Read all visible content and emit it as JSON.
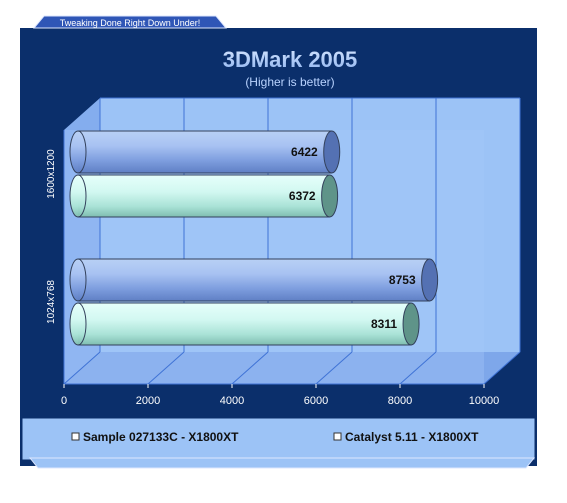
{
  "banner": {
    "tagline": "Tweaking Done Right Down Under!"
  },
  "chart_data": {
    "type": "bar",
    "orientation": "horizontal",
    "title": "3DMark 2005",
    "subtitle": "(Higher is better)",
    "categories": [
      "1600x1200",
      "1024x768"
    ],
    "series": [
      {
        "name": "Sample 027133C - X1800XT",
        "values": [
          6422,
          8753
        ]
      },
      {
        "name": "Catalyst 5.11 - X1800XT",
        "values": [
          6372,
          8311
        ]
      }
    ],
    "xlim": [
      0,
      10000
    ],
    "xticks": [
      0,
      2000,
      4000,
      6000,
      8000,
      10000
    ],
    "grid": true,
    "legend_position": "bottom",
    "colors": {
      "frame": "#0b2f6b",
      "plot_background": "#9cc3f6",
      "series_1": "#8fb1e9",
      "series_2": "#c6f3ec",
      "title": "#a9c9f7",
      "banner": "#2f56b6"
    }
  }
}
